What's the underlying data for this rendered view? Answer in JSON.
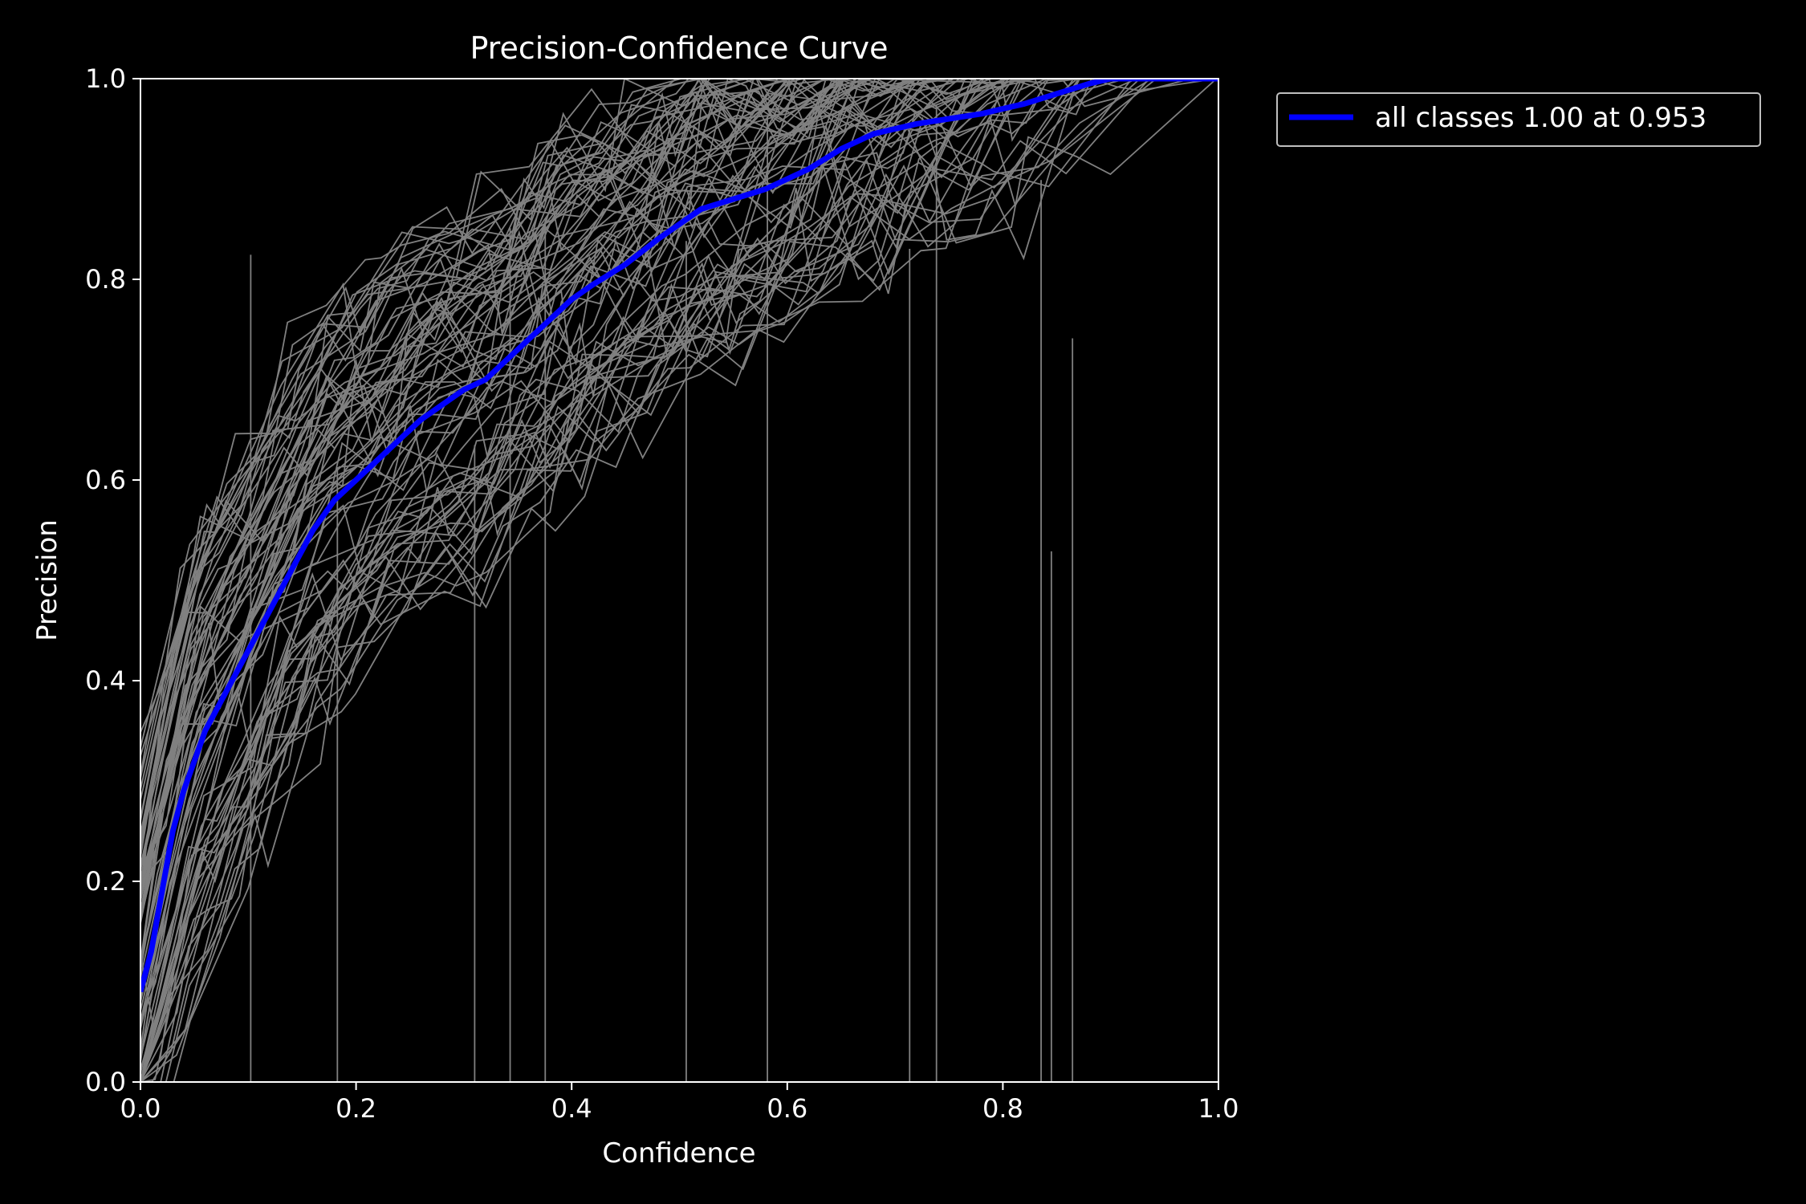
{
  "chart_data": {
    "type": "line",
    "title": "Precision-Confidence Curve",
    "xlabel": "Confidence",
    "ylabel": "Precision",
    "xlim": [
      0,
      1
    ],
    "ylim": [
      0,
      1
    ],
    "xticks": [
      "0.0",
      "0.2",
      "0.4",
      "0.6",
      "0.8",
      "1.0"
    ],
    "yticks": [
      "0.0",
      "0.2",
      "0.4",
      "0.6",
      "0.8",
      "1.0"
    ],
    "grid": false,
    "legend_position": "outside-top-right",
    "background_color": "#000000",
    "foreground_color": "#ffffff",
    "series": [
      {
        "name": "all classes 1.00 at 0.953",
        "color": "#0000ff",
        "x": [
          0.0,
          0.01,
          0.02,
          0.03,
          0.04,
          0.05,
          0.06,
          0.08,
          0.1,
          0.12,
          0.14,
          0.16,
          0.18,
          0.2,
          0.22,
          0.24,
          0.26,
          0.28,
          0.3,
          0.32,
          0.35,
          0.38,
          0.4,
          0.42,
          0.45,
          0.48,
          0.5,
          0.52,
          0.55,
          0.58,
          0.6,
          0.62,
          0.65,
          0.68,
          0.7,
          0.72,
          0.75,
          0.78,
          0.8,
          0.82,
          0.85,
          0.88,
          0.9,
          0.92,
          0.953,
          1.0
        ],
        "y": [
          0.09,
          0.13,
          0.19,
          0.25,
          0.29,
          0.32,
          0.35,
          0.39,
          0.43,
          0.47,
          0.51,
          0.55,
          0.58,
          0.6,
          0.62,
          0.64,
          0.66,
          0.675,
          0.69,
          0.7,
          0.73,
          0.76,
          0.78,
          0.795,
          0.815,
          0.84,
          0.855,
          0.87,
          0.88,
          0.89,
          0.9,
          0.91,
          0.93,
          0.945,
          0.95,
          0.955,
          0.96,
          0.965,
          0.97,
          0.975,
          0.985,
          0.995,
          1.0,
          1.0,
          1.0,
          1.0
        ]
      }
    ],
    "class_curves": {
      "count": 80,
      "color": "#808080"
    }
  }
}
